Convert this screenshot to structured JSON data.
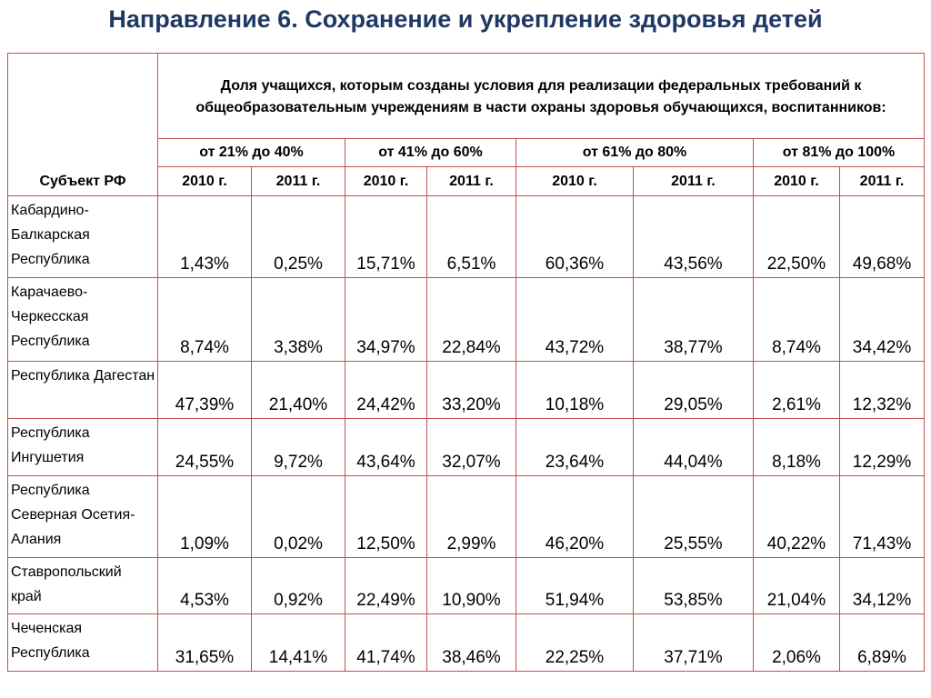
{
  "title": "Направление 6. Сохранение и укрепление здоровья детей",
  "table": {
    "subject_header": "Субъект РФ",
    "description": "Доля учащихся, которым созданы условия для реализации федеральных требований к общеобразовательным учреждениям в части охраны здоровья обучающихся, воспитанников:",
    "ranges": [
      "от 21% до 40%",
      "от 41% до 60%",
      "от 61% до 80%",
      "от 81% до 100%"
    ],
    "years": [
      "2010 г.",
      "2011 г.",
      "2010 г.",
      "2011 г.",
      "2010 г.",
      "2011 г.",
      "2010 г.",
      "2011 г."
    ],
    "rows": [
      {
        "region": "Кабардино-Балкарская Республика",
        "values": [
          "1,43%",
          "0,25%",
          "15,71%",
          "6,51%",
          "60,36%",
          "43,56%",
          "22,50%",
          "49,68%"
        ]
      },
      {
        "region": "Карачаево-Черкесская Республика",
        "values": [
          "8,74%",
          "3,38%",
          "34,97%",
          "22,84%",
          "43,72%",
          "38,77%",
          "8,74%",
          "34,42%"
        ]
      },
      {
        "region": "Республика Дагестан",
        "values": [
          "47,39%",
          "21,40%",
          "24,42%",
          "33,20%",
          "10,18%",
          "29,05%",
          "2,61%",
          "12,32%"
        ]
      },
      {
        "region": "Республика Ингушетия",
        "values": [
          "24,55%",
          "9,72%",
          "43,64%",
          "32,07%",
          "23,64%",
          "44,04%",
          "8,18%",
          "12,29%"
        ]
      },
      {
        "region": "Республика Северная Осетия-Алания",
        "values": [
          "1,09%",
          "0,02%",
          "12,50%",
          "2,99%",
          "46,20%",
          "25,55%",
          "40,22%",
          "71,43%"
        ]
      },
      {
        "region": "Ставропольский край",
        "values": [
          "4,53%",
          "0,92%",
          "22,49%",
          "10,90%",
          "51,94%",
          "53,85%",
          "21,04%",
          "34,12%"
        ]
      },
      {
        "region": "Чеченская Республика",
        "values": [
          "31,65%",
          "14,41%",
          "41,74%",
          "38,46%",
          "22,25%",
          "37,71%",
          "2,06%",
          "6,89%"
        ]
      }
    ]
  }
}
